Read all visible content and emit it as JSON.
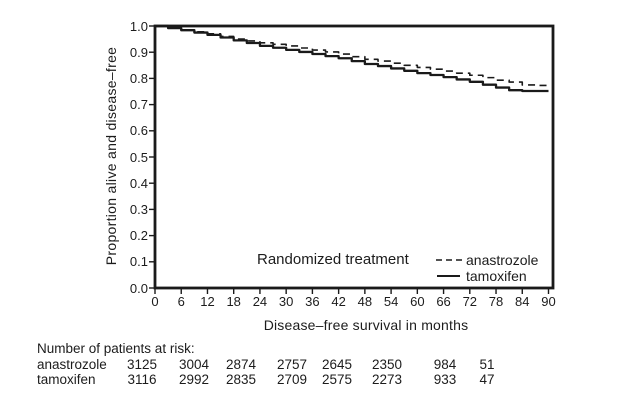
{
  "figure": {
    "legend": {
      "group_label": "Randomized treatment",
      "items": [
        {
          "label": "anastrozole",
          "line": "dashed"
        },
        {
          "label": "tamoxifen",
          "line": "solid"
        }
      ]
    },
    "risk_table": {
      "title": "Number of patients at risk:",
      "rows": [
        {
          "label": "anastrozole",
          "counts": [
            "3125",
            "3004",
            "2874",
            "2757",
            "2645",
            "2350",
            "984",
            "51"
          ]
        },
        {
          "label": "tamoxifen",
          "counts": [
            "3116",
            "2992",
            "2835",
            "2709",
            "2575",
            "2273",
            "933",
            "47"
          ]
        }
      ]
    },
    "colors": {
      "line": "#1a1a1a",
      "text": "#1c1c1c",
      "background": "#ffffff"
    }
  },
  "chart_data": {
    "type": "line",
    "subtype": "kaplan-meier step curves",
    "title": "",
    "xlabel": "Disease–free survival in months",
    "ylabel": "Proportion alive and disease–free",
    "xlim": [
      0,
      90
    ],
    "ylim": [
      0.0,
      1.0
    ],
    "x_ticks": [
      0,
      6,
      12,
      18,
      24,
      30,
      36,
      42,
      48,
      54,
      60,
      66,
      72,
      78,
      84,
      90
    ],
    "y_ticks": [
      0.0,
      0.1,
      0.2,
      0.3,
      0.4,
      0.5,
      0.6,
      0.7,
      0.8,
      0.9,
      1.0
    ],
    "grid": false,
    "legend_position": "inside lower right",
    "x": [
      0,
      3,
      6,
      9,
      12,
      15,
      18,
      21,
      24,
      27,
      30,
      33,
      36,
      39,
      42,
      45,
      48,
      51,
      54,
      57,
      60,
      63,
      66,
      69,
      72,
      75,
      78,
      81,
      84,
      87,
      90
    ],
    "series": [
      {
        "name": "anastrozole",
        "style": "dashed",
        "values": [
          1.0,
          0.993,
          0.985,
          0.978,
          0.97,
          0.96,
          0.95,
          0.943,
          0.936,
          0.93,
          0.924,
          0.916,
          0.908,
          0.901,
          0.893,
          0.883,
          0.873,
          0.866,
          0.858,
          0.85,
          0.842,
          0.835,
          0.828,
          0.82,
          0.812,
          0.803,
          0.793,
          0.786,
          0.775,
          0.773,
          0.772
        ]
      },
      {
        "name": "tamoxifen",
        "style": "solid",
        "values": [
          1.0,
          0.992,
          0.984,
          0.975,
          0.966,
          0.956,
          0.945,
          0.935,
          0.924,
          0.917,
          0.909,
          0.901,
          0.893,
          0.885,
          0.877,
          0.866,
          0.855,
          0.847,
          0.838,
          0.829,
          0.82,
          0.813,
          0.805,
          0.796,
          0.787,
          0.776,
          0.765,
          0.755,
          0.752,
          0.752,
          0.752
        ]
      }
    ]
  }
}
